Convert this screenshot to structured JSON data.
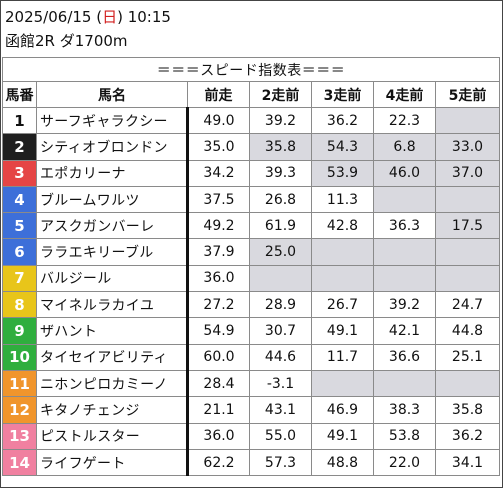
{
  "header": {
    "date_prefix": "2025/06/15 (",
    "day": "日",
    "time_suffix": ") 10:15",
    "race": "函館2R ダ1700m"
  },
  "table": {
    "title": "＝＝＝スピード指数表＝＝＝",
    "columns": [
      "馬番",
      "馬名",
      "前走",
      "2走前",
      "3走前",
      "4走前",
      "5走前"
    ],
    "rows": [
      {
        "num": "1",
        "color": "#ffffff",
        "text_color": "#111111",
        "name": "サーフギャラクシー",
        "vals": [
          "49.0",
          "39.2",
          "36.2",
          "22.3",
          ""
        ],
        "gray": [
          false,
          false,
          false,
          false,
          true
        ]
      },
      {
        "num": "2",
        "color": "#1f1f1f",
        "text_color": "#ffffff",
        "name": "シティオブロンドン",
        "vals": [
          "35.0",
          "35.8",
          "54.3",
          "6.8",
          "33.0"
        ],
        "gray": [
          false,
          true,
          true,
          true,
          true
        ]
      },
      {
        "num": "3",
        "color": "#e54545",
        "text_color": "#ffffff",
        "name": "エポカリーナ",
        "vals": [
          "34.2",
          "39.3",
          "53.9",
          "46.0",
          "37.0"
        ],
        "gray": [
          false,
          false,
          true,
          true,
          true
        ]
      },
      {
        "num": "4",
        "color": "#3d6fd9",
        "text_color": "#ffffff",
        "name": "ブルームワルツ",
        "vals": [
          "37.5",
          "26.8",
          "11.3",
          "",
          ""
        ],
        "gray": [
          false,
          false,
          false,
          true,
          true
        ]
      },
      {
        "num": "5",
        "color": "#3d6fd9",
        "text_color": "#ffffff",
        "name": "アスクガンバーレ",
        "vals": [
          "49.2",
          "61.9",
          "42.8",
          "36.3",
          "17.5"
        ],
        "gray": [
          false,
          false,
          false,
          false,
          true
        ]
      },
      {
        "num": "6",
        "color": "#3d6fd9",
        "text_color": "#ffffff",
        "name": "ララエキリーブル",
        "vals": [
          "37.9",
          "25.0",
          "",
          "",
          ""
        ],
        "gray": [
          false,
          true,
          true,
          true,
          true
        ]
      },
      {
        "num": "7",
        "color": "#e8c51a",
        "text_color": "#ffffff",
        "name": "バルジール",
        "vals": [
          "36.0",
          "",
          "",
          "",
          ""
        ],
        "gray": [
          false,
          true,
          true,
          true,
          true
        ]
      },
      {
        "num": "8",
        "color": "#e8c51a",
        "text_color": "#ffffff",
        "name": "マイネルラカイユ",
        "vals": [
          "27.2",
          "28.9",
          "26.7",
          "39.2",
          "24.7"
        ],
        "gray": [
          false,
          false,
          false,
          false,
          false
        ]
      },
      {
        "num": "9",
        "color": "#2fae3e",
        "text_color": "#ffffff",
        "name": "ザハント",
        "vals": [
          "54.9",
          "30.7",
          "49.1",
          "42.1",
          "44.8"
        ],
        "gray": [
          false,
          false,
          false,
          false,
          false
        ]
      },
      {
        "num": "10",
        "color": "#2fae3e",
        "text_color": "#ffffff",
        "name": "タイセイアビリティ",
        "vals": [
          "60.0",
          "44.6",
          "11.7",
          "36.6",
          "25.1"
        ],
        "gray": [
          false,
          false,
          false,
          false,
          false
        ]
      },
      {
        "num": "11",
        "color": "#f0952c",
        "text_color": "#ffffff",
        "name": "ニホンピロカミーノ",
        "vals": [
          "28.4",
          "-3.1",
          "",
          "",
          ""
        ],
        "gray": [
          false,
          false,
          true,
          true,
          true
        ]
      },
      {
        "num": "12",
        "color": "#f0952c",
        "text_color": "#ffffff",
        "name": "キタノチェンジ",
        "vals": [
          "21.1",
          "43.1",
          "46.9",
          "38.3",
          "35.8"
        ],
        "gray": [
          false,
          false,
          false,
          false,
          false
        ]
      },
      {
        "num": "13",
        "color": "#f080a0",
        "text_color": "#ffffff",
        "name": "ピストルスター",
        "vals": [
          "36.0",
          "55.0",
          "49.1",
          "53.8",
          "36.2"
        ],
        "gray": [
          false,
          false,
          false,
          false,
          false
        ]
      },
      {
        "num": "14",
        "color": "#f080a0",
        "text_color": "#ffffff",
        "name": "ライフゲート",
        "vals": [
          "62.2",
          "57.3",
          "48.8",
          "22.0",
          "34.1"
        ],
        "gray": [
          false,
          false,
          false,
          false,
          false
        ]
      }
    ]
  }
}
